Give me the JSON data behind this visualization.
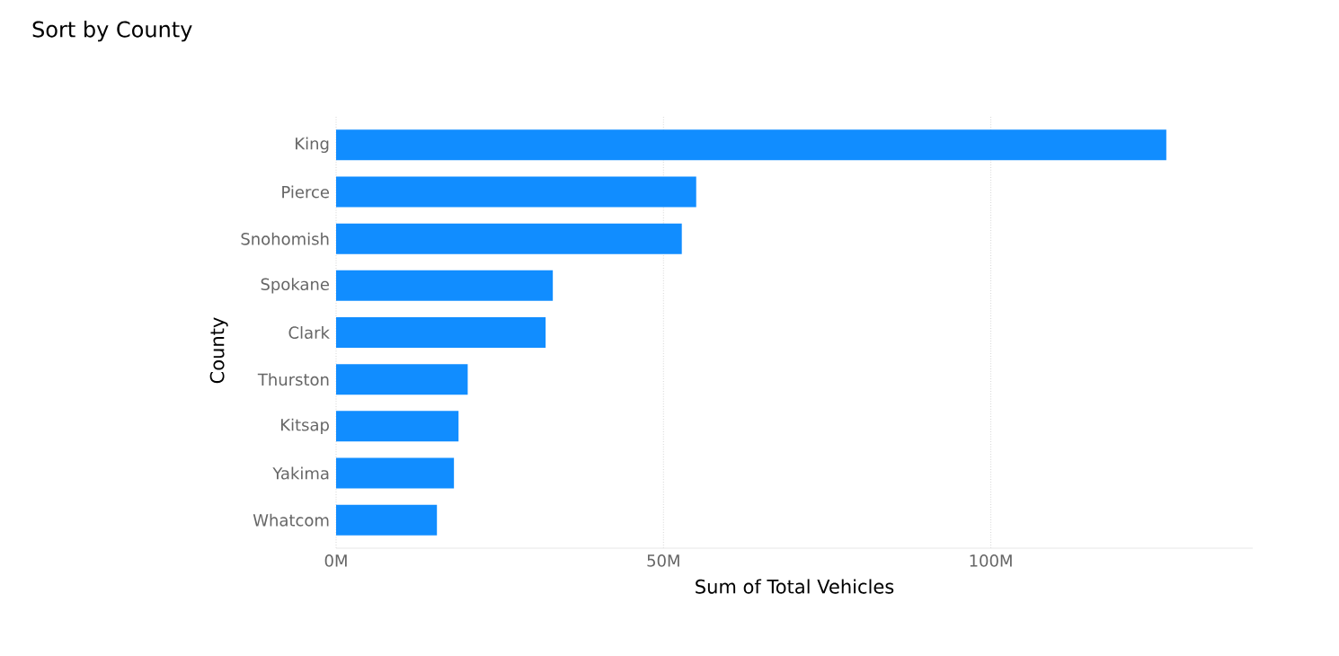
{
  "chart_data": {
    "type": "bar",
    "orientation": "horizontal",
    "title": "Sort by County",
    "xlabel": "Sum of Total Vehicles",
    "ylabel": "County",
    "categories": [
      "King",
      "Pierce",
      "Snohomish",
      "Spokane",
      "Clark",
      "Thurston",
      "Kitsap",
      "Yakima",
      "Whatcom"
    ],
    "values": [
      126.8,
      55.0,
      52.8,
      33.1,
      32.0,
      20.1,
      18.7,
      18.0,
      15.4
    ],
    "color": "#118dff",
    "xlim": [
      0,
      140
    ],
    "xticks": [
      {
        "value": 0,
        "label": "0M"
      },
      {
        "value": 50,
        "label": "50M"
      },
      {
        "value": 100,
        "label": "100M"
      }
    ],
    "grid": "x"
  }
}
